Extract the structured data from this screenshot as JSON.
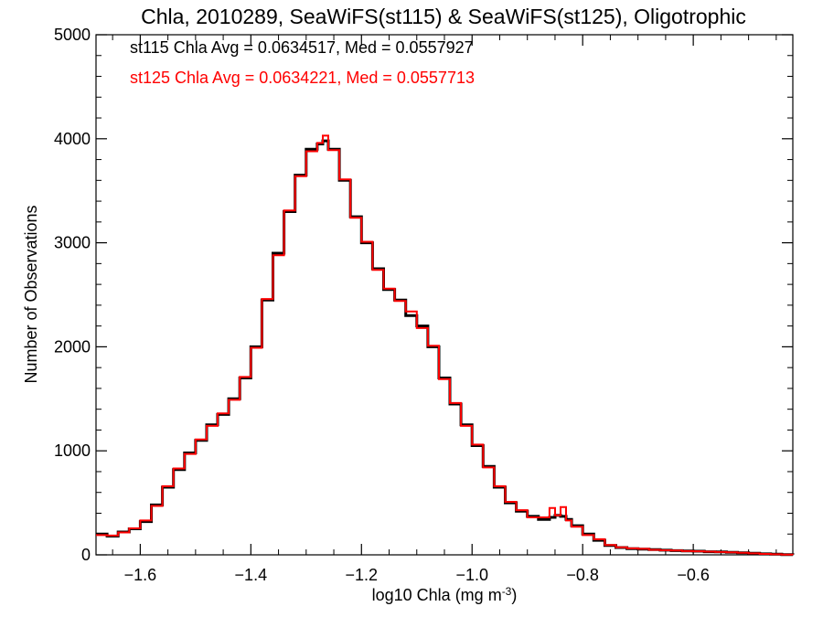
{
  "chart_data": {
    "type": "line",
    "title": "Chla, 2010289, SeaWiFS(st115) & SeaWiFS(st125), Oligotrophic",
    "xlabel": "log10 Chla (mg m",
    "xlabel_sup": "-3",
    "xlabel_end": ")",
    "ylabel": "Number of Observations",
    "xlim": [
      -1.68,
      -0.42
    ],
    "ylim": [
      0,
      5000
    ],
    "x_ticks": [
      -1.6,
      -1.4,
      -1.2,
      -1.0,
      -0.8,
      -0.6
    ],
    "x_tick_labels": [
      "−1.6",
      "−1.4",
      "−1.2",
      "−1.0",
      "−0.8",
      "−0.6"
    ],
    "y_ticks": [
      0,
      1000,
      2000,
      3000,
      4000,
      5000
    ],
    "y_tick_labels": [
      "0",
      "1000",
      "2000",
      "3000",
      "4000",
      "5000"
    ],
    "grid": false,
    "annotations": [
      {
        "text": "st115 Chla Avg = 0.0634517, Med = 0.0557927",
        "color": "#000000"
      },
      {
        "text": "st125 Chla Avg = 0.0634221, Med = 0.0557713",
        "color": "#ff0000"
      }
    ],
    "x": [
      -1.68,
      -1.66,
      -1.64,
      -1.62,
      -1.6,
      -1.58,
      -1.56,
      -1.54,
      -1.52,
      -1.5,
      -1.48,
      -1.46,
      -1.44,
      -1.42,
      -1.4,
      -1.38,
      -1.36,
      -1.34,
      -1.32,
      -1.3,
      -1.28,
      -1.27,
      -1.26,
      -1.24,
      -1.22,
      -1.2,
      -1.18,
      -1.16,
      -1.14,
      -1.12,
      -1.1,
      -1.08,
      -1.06,
      -1.04,
      -1.02,
      -1.0,
      -0.98,
      -0.96,
      -0.94,
      -0.92,
      -0.9,
      -0.88,
      -0.86,
      -0.85,
      -0.84,
      -0.83,
      -0.82,
      -0.8,
      -0.78,
      -0.76,
      -0.74,
      -0.72,
      -0.7,
      -0.68,
      -0.66,
      -0.64,
      -0.62,
      -0.6,
      -0.58,
      -0.56,
      -0.54,
      -0.52,
      -0.5,
      -0.48,
      -0.46,
      -0.44,
      -0.42
    ],
    "series": [
      {
        "color": "#000000",
        "values": [
          200,
          180,
          220,
          250,
          320,
          480,
          650,
          820,
          980,
          1100,
          1250,
          1350,
          1500,
          1700,
          2000,
          2450,
          2900,
          3300,
          3650,
          3900,
          3950,
          3980,
          3900,
          3600,
          3250,
          3000,
          2750,
          2550,
          2450,
          2300,
          2200,
          2000,
          1700,
          1450,
          1250,
          1050,
          850,
          650,
          500,
          420,
          370,
          340,
          360,
          380,
          370,
          340,
          280,
          200,
          140,
          90,
          70,
          60,
          55,
          50,
          45,
          40,
          38,
          35,
          30,
          28,
          25,
          20,
          15,
          10,
          6,
          3,
          2
        ]
      },
      {
        "color": "#ff0000",
        "values": [
          190,
          185,
          215,
          255,
          330,
          470,
          660,
          830,
          970,
          1110,
          1240,
          1360,
          1490,
          1710,
          1990,
          2460,
          2880,
          3310,
          3640,
          3880,
          3960,
          4030,
          3890,
          3610,
          3240,
          3010,
          2740,
          2560,
          2440,
          2340,
          2180,
          2010,
          1690,
          1460,
          1240,
          1060,
          840,
          660,
          510,
          430,
          360,
          360,
          450,
          380,
          460,
          330,
          270,
          190,
          150,
          95,
          72,
          62,
          58,
          48,
          44,
          42,
          36,
          34,
          31,
          27,
          24,
          19,
          14,
          9,
          5,
          3,
          2
        ]
      }
    ]
  }
}
